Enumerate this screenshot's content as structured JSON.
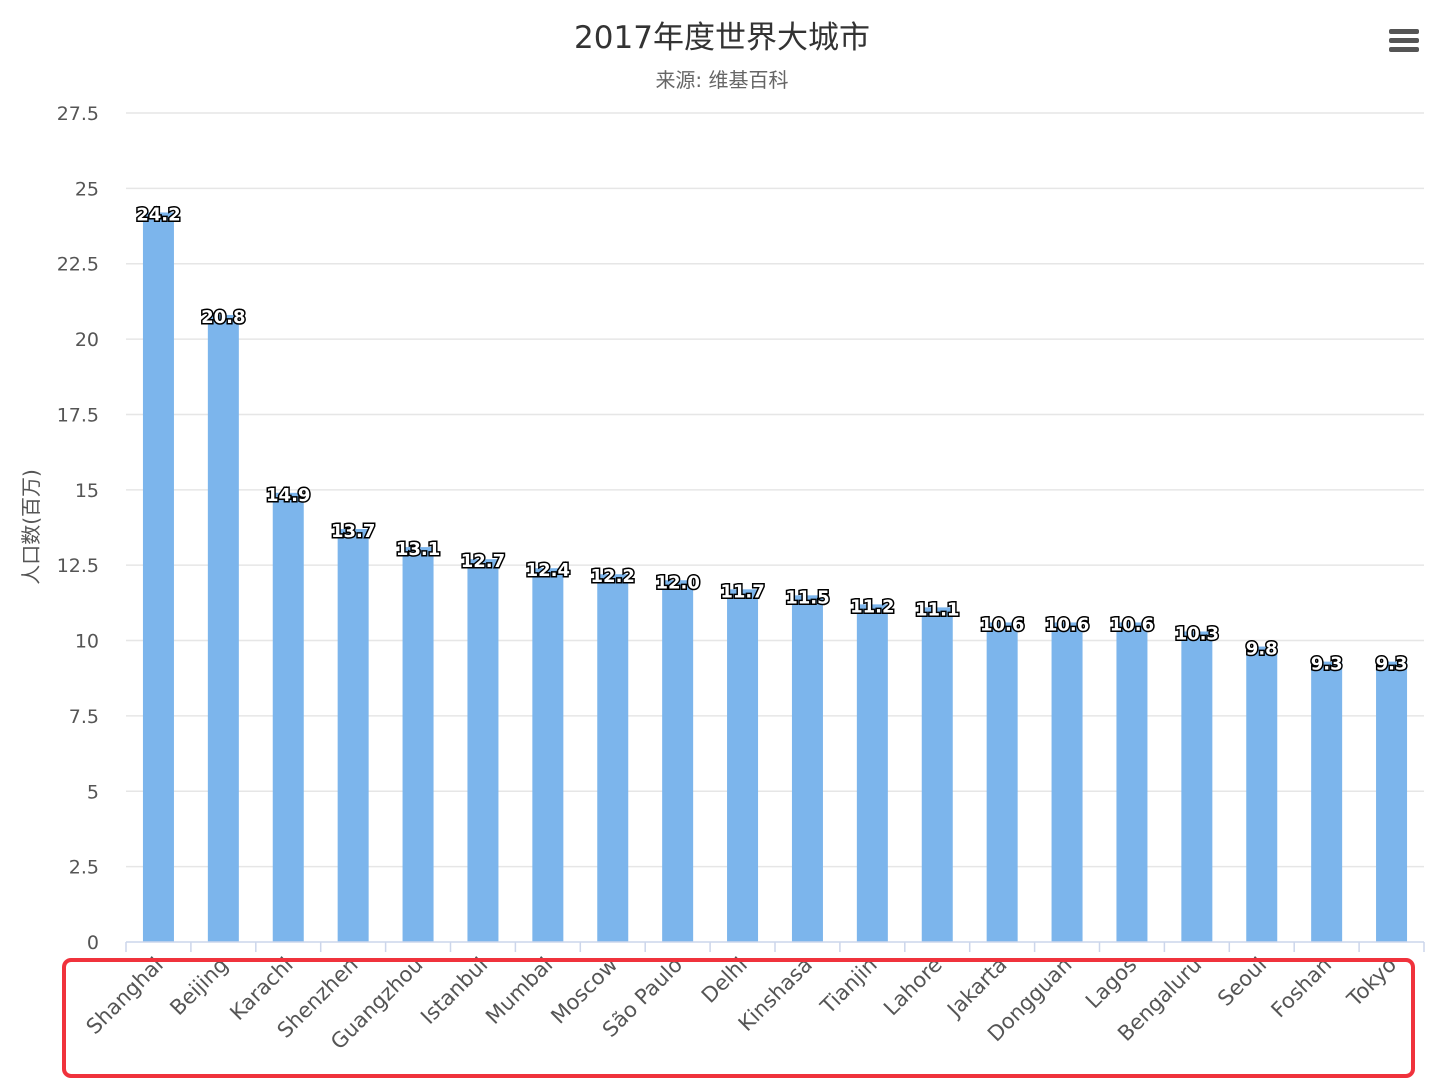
{
  "chart_data": {
    "type": "bar",
    "title": "2017年度世界大城市",
    "subtitle": "来源: 维基百科",
    "ylabel": "人口数(百万)",
    "xlabel": "",
    "ylim": [
      0,
      27.5
    ],
    "yticks": [
      "0",
      "2.5",
      "5",
      "7.5",
      "10",
      "12.5",
      "15",
      "17.5",
      "20",
      "22.5",
      "25",
      "27.5"
    ],
    "grid": true,
    "legend": "none",
    "categories": [
      "Shanghai",
      "Beijing",
      "Karachi",
      "Shenzhen",
      "Guangzhou",
      "Istanbul",
      "Mumbai",
      "Moscow",
      "São Paulo",
      "Delhi",
      "Kinshasa",
      "Tianjin",
      "Lahore",
      "Jakarta",
      "Dongguan",
      "Lagos",
      "Bengaluru",
      "Seoul",
      "Foshan",
      "Tokyo"
    ],
    "values": [
      24.2,
      20.8,
      14.9,
      13.7,
      13.1,
      12.7,
      12.4,
      12.2,
      12.0,
      11.7,
      11.5,
      11.2,
      11.1,
      10.6,
      10.6,
      10.6,
      10.3,
      9.8,
      9.3,
      9.3
    ],
    "data_labels": [
      "24.2",
      "20.8",
      "14.9",
      "13.7",
      "13.1",
      "12.7",
      "12.4",
      "12.2",
      "12.0",
      "11.7",
      "11.5",
      "11.2",
      "11.1",
      "10.6",
      "10.6",
      "10.6",
      "10.3",
      "9.8",
      "9.3",
      "9.3"
    ],
    "bar_color": "#7cb5ec",
    "highlight_color": "#f0323c"
  },
  "menu": {
    "icon": "hamburger-menu-icon"
  }
}
